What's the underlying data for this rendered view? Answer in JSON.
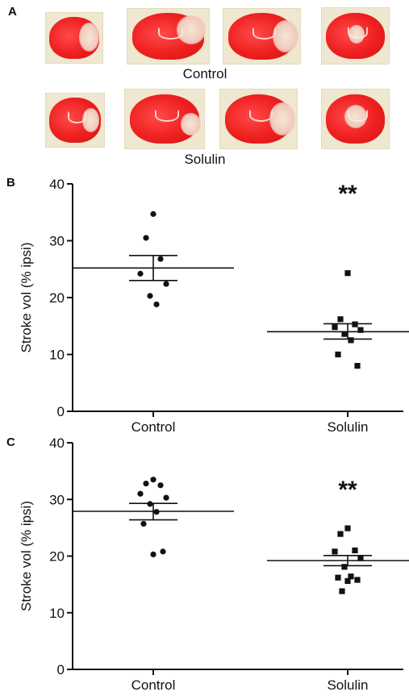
{
  "panels": {
    "a": {
      "letter": "A",
      "row_labels": [
        "Control",
        "Solulin"
      ]
    },
    "b": {
      "letter": "B"
    },
    "c": {
      "letter": "C"
    }
  },
  "chart_data": [
    {
      "type": "scatter",
      "panel": "B",
      "categories": [
        "Control",
        "Solulin"
      ],
      "ylabel": "Stroke vol (% ipsi)",
      "ylim": [
        0,
        40
      ],
      "yticks": [
        0,
        10,
        20,
        30,
        40
      ],
      "series": [
        {
          "category": "Control",
          "marker": "circle",
          "values": [
            34.7,
            30.5,
            26.8,
            24.2,
            22.4,
            20.3,
            18.8
          ],
          "mean": 25.2,
          "sem_upper": 27.4,
          "sem_lower": 23.0
        },
        {
          "category": "Solulin",
          "marker": "square",
          "values": [
            24.3,
            16.2,
            15.3,
            14.8,
            14.3,
            13.6,
            12.5,
            10.0,
            8.0
          ],
          "mean": 14.0,
          "sem_upper": 15.4,
          "sem_lower": 12.7
        }
      ],
      "annotation": "**"
    },
    {
      "type": "scatter",
      "panel": "C",
      "categories": [
        "Control",
        "Solulin"
      ],
      "ylabel": "Stroke vol (% ipsi)",
      "ylim": [
        0,
        40
      ],
      "yticks": [
        0,
        10,
        20,
        30,
        40
      ],
      "series": [
        {
          "category": "Control",
          "marker": "circle",
          "values": [
            33.5,
            32.8,
            32.5,
            31.0,
            30.3,
            29.2,
            27.8,
            25.7,
            20.8,
            20.3
          ],
          "mean": 27.9,
          "sem_upper": 29.3,
          "sem_lower": 26.4
        },
        {
          "category": "Solulin",
          "marker": "square",
          "values": [
            24.9,
            23.9,
            21.0,
            20.8,
            19.7,
            18.1,
            16.4,
            16.2,
            15.8,
            15.6,
            13.8
          ],
          "mean": 19.2,
          "sem_upper": 20.1,
          "sem_lower": 18.3
        }
      ],
      "annotation": "**"
    }
  ]
}
